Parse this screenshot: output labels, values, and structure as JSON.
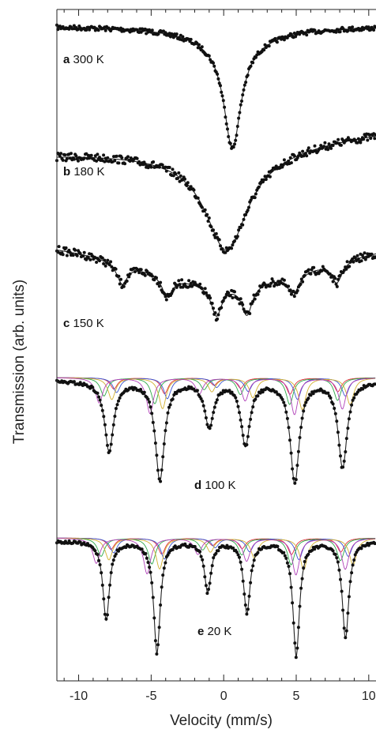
{
  "chart_data": {
    "type": "scatter",
    "title": "",
    "xlabel": "Velocity (mm/s)",
    "ylabel": "Transmission (arb. units)",
    "xlim": [
      -11.5,
      10.5
    ],
    "xticks": [
      -10,
      -5,
      0,
      5,
      10
    ],
    "xtick_labels": [
      "-10",
      "-5",
      "0",
      "5",
      "10"
    ],
    "grid": false,
    "legend": "none",
    "colors": {
      "data": "#111111",
      "fit": "#222222",
      "components": [
        "#e0303a",
        "#3a55d0",
        "#2fa84a",
        "#d2b030",
        "#b040b8",
        "#40b8c8",
        "#9a9a9a"
      ]
    },
    "panels": [
      {
        "letter": "a",
        "temperature": "300 K",
        "description_type": "broad singlet",
        "center_velocity": 0.6,
        "dip_depth_units": 155,
        "dip_width": 1.4,
        "components": []
      },
      {
        "letter": "b",
        "temperature": "180 K",
        "description_type": "broad relaxation singlet",
        "center_velocity": 0.2,
        "dip_depth_units": 125,
        "dip_width": 3.5,
        "components": []
      },
      {
        "letter": "c",
        "temperature": "150 K",
        "description_type": "collapsing sextet",
        "line_positions": [
          -7.0,
          -3.9,
          -0.5,
          1.6,
          4.8,
          7.8
        ],
        "components": []
      },
      {
        "letter": "d",
        "temperature": "100 K",
        "description_type": "magnetic sextet",
        "line_positions": [
          -7.9,
          -4.4,
          -1.0,
          1.5,
          4.9,
          8.2
        ],
        "components": [
          "sextet 1",
          "sextet 2",
          "sextet 3",
          "sextet 4",
          "sextet 5"
        ]
      },
      {
        "letter": "e",
        "temperature": "20 K",
        "description_type": "magnetic sextet",
        "line_positions": [
          -8.1,
          -4.6,
          -1.1,
          1.6,
          5.0,
          8.4
        ],
        "components": [
          "sextet 1",
          "sextet 2",
          "sextet 3",
          "sextet 4",
          "sextet 5"
        ]
      }
    ]
  }
}
